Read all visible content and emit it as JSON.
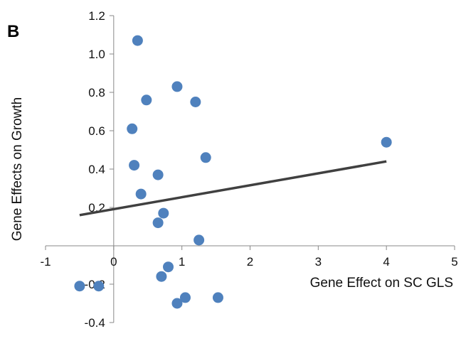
{
  "chart_data": {
    "type": "scatter",
    "panel_label": "B",
    "xlabel": "Gene Effect on SC GLS",
    "ylabel": "Gene Effects on Growth",
    "xlim": [
      -1,
      5
    ],
    "ylim": [
      -0.4,
      1.2
    ],
    "x_ticks": [
      -1,
      0,
      1,
      2,
      3,
      4,
      5
    ],
    "y_ticks": [
      -0.4,
      -0.2,
      0.2,
      0.4,
      0.6,
      0.8,
      1.0,
      1.2
    ],
    "x_tick_labels": [
      "-1",
      "0",
      "1",
      "2",
      "3",
      "4",
      "5"
    ],
    "y_tick_labels": [
      "-0.4",
      "-0.2",
      "0.2",
      "0.4",
      "0.6",
      "0.8",
      "1.0",
      "1.2"
    ],
    "grid": false,
    "marker_color": "#4F81BD",
    "trendline_color": "#404040",
    "points": [
      {
        "x": 0.35,
        "y": 1.07
      },
      {
        "x": 0.93,
        "y": 0.83
      },
      {
        "x": 0.48,
        "y": 0.76
      },
      {
        "x": 1.2,
        "y": 0.75
      },
      {
        "x": 0.27,
        "y": 0.61
      },
      {
        "x": 4.0,
        "y": 0.54
      },
      {
        "x": 1.35,
        "y": 0.46
      },
      {
        "x": 0.3,
        "y": 0.42
      },
      {
        "x": 0.65,
        "y": 0.37
      },
      {
        "x": 0.4,
        "y": 0.27
      },
      {
        "x": 0.73,
        "y": 0.17
      },
      {
        "x": 0.65,
        "y": 0.12
      },
      {
        "x": 1.25,
        "y": 0.03
      },
      {
        "x": 0.8,
        "y": -0.11
      },
      {
        "x": 0.7,
        "y": -0.16
      },
      {
        "x": -0.5,
        "y": -0.21
      },
      {
        "x": -0.22,
        "y": -0.21
      },
      {
        "x": 1.05,
        "y": -0.27
      },
      {
        "x": 1.53,
        "y": -0.27
      },
      {
        "x": 0.93,
        "y": -0.3
      }
    ],
    "trendline": {
      "x": [
        -0.5,
        4.0
      ],
      "y": [
        0.16,
        0.44
      ]
    }
  }
}
